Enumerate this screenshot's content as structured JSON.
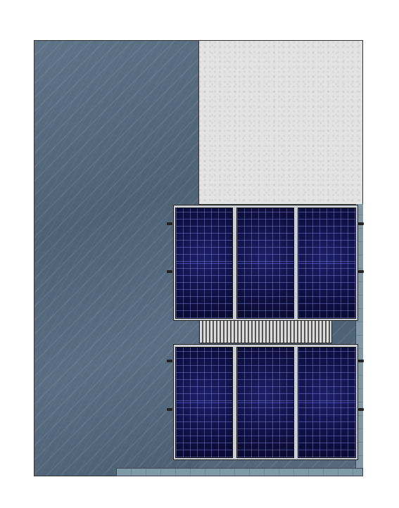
{
  "drawing": {
    "materials": {
      "slate": "slate-stone-surface",
      "concrete": "concrete-surface",
      "tiles": "grey-tile-border",
      "grating": "metal-grating-walkway"
    },
    "arrays": [
      {
        "name": "upper-solar-array",
        "panel_count": 3
      },
      {
        "name": "lower-solar-array",
        "panel_count": 3
      }
    ],
    "colors": {
      "slate": "#536779",
      "concrete": "#e3e3e3",
      "panel": "#0f1045",
      "frame": "#c9ced4",
      "tile": "#7f9aa6"
    }
  }
}
